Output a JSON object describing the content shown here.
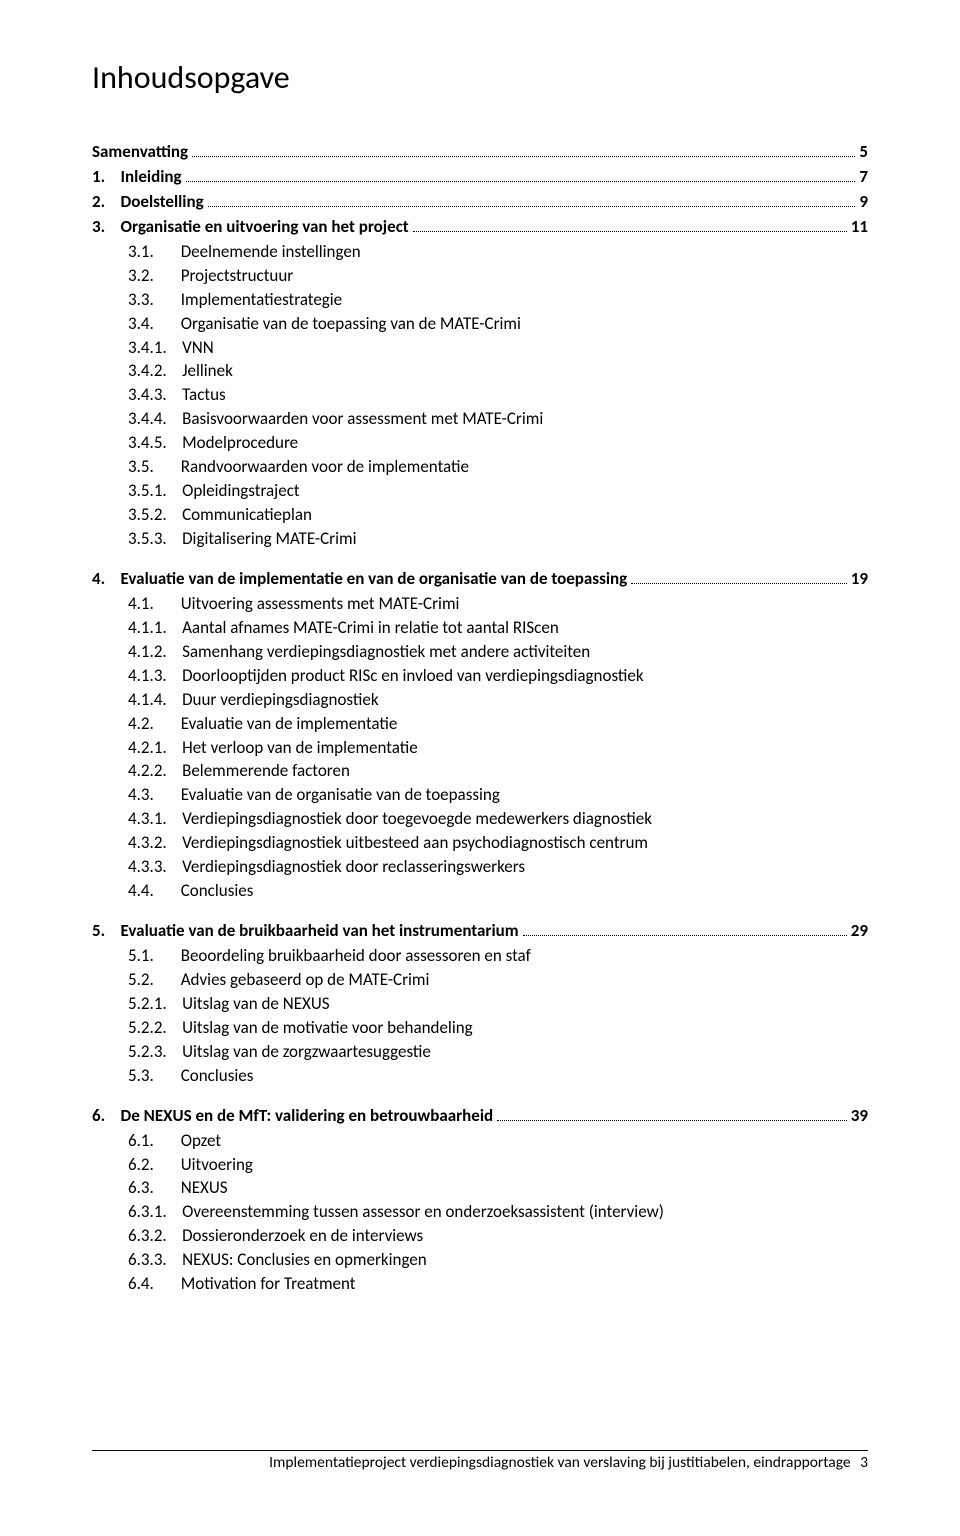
{
  "title": "Inhoudsopgave",
  "toc": [
    {
      "type": "spacer"
    },
    {
      "type": "main",
      "label": "Samenvatting",
      "page": "5",
      "indent": 0
    },
    {
      "type": "main",
      "label": "1.    Inleiding",
      "page": "7",
      "indent": 0
    },
    {
      "type": "main",
      "label": "2.    Doelstelling",
      "page": "9",
      "indent": 0
    },
    {
      "type": "main",
      "label": "3.    Organisatie en uitvoering van het project",
      "page": "11",
      "indent": 0
    },
    {
      "type": "sub",
      "text": "3.1.       Deelnemende instellingen"
    },
    {
      "type": "sub",
      "text": "3.2.       Projectstructuur"
    },
    {
      "type": "sub",
      "text": "3.3.       Implementatiestrategie"
    },
    {
      "type": "sub",
      "text": "3.4.       Organisatie van de toepassing van de MATE-Crimi"
    },
    {
      "type": "sub",
      "text": "3.4.1.    VNN"
    },
    {
      "type": "sub",
      "text": "3.4.2.    Jellinek"
    },
    {
      "type": "sub",
      "text": "3.4.3.    Tactus"
    },
    {
      "type": "sub",
      "text": "3.4.4.    Basisvoorwaarden voor assessment met MATE-Crimi"
    },
    {
      "type": "sub",
      "text": "3.4.5.    Modelprocedure"
    },
    {
      "type": "sub",
      "text": "3.5.       Randvoorwaarden voor de implementatie"
    },
    {
      "type": "sub",
      "text": "3.5.1.    Opleidingstraject"
    },
    {
      "type": "sub",
      "text": "3.5.2.    Communicatieplan"
    },
    {
      "type": "sub",
      "text": "3.5.3.    Digitalisering MATE-Crimi"
    },
    {
      "type": "gap"
    },
    {
      "type": "main",
      "label": "4.    Evaluatie van de implementatie en van de organisatie van de toepassing",
      "page": "19",
      "indent": 0
    },
    {
      "type": "sub",
      "text": "4.1.       Uitvoering assessments met MATE-Crimi"
    },
    {
      "type": "sub",
      "text": "4.1.1.    Aantal afnames MATE-Crimi in relatie tot aantal RIScen"
    },
    {
      "type": "sub",
      "text": "4.1.2.    Samenhang verdiepingsdiagnostiek met andere activiteiten"
    },
    {
      "type": "sub",
      "text": "4.1.3.    Doorlooptijden product RISc en invloed van verdiepingsdiagnostiek"
    },
    {
      "type": "sub",
      "text": "4.1.4.    Duur verdiepingsdiagnostiek"
    },
    {
      "type": "sub",
      "text": "4.2.       Evaluatie van de implementatie"
    },
    {
      "type": "sub",
      "text": "4.2.1.    Het verloop van de implementatie"
    },
    {
      "type": "sub",
      "text": "4.2.2.    Belemmerende factoren"
    },
    {
      "type": "sub",
      "text": "4.3.       Evaluatie van de organisatie van de toepassing"
    },
    {
      "type": "sub",
      "text": "4.3.1.    Verdiepingsdiagnostiek door toegevoegde medewerkers diagnostiek"
    },
    {
      "type": "sub",
      "text": "4.3.2.    Verdiepingsdiagnostiek uitbesteed aan psychodiagnostisch centrum"
    },
    {
      "type": "sub",
      "text": "4.3.3.    Verdiepingsdiagnostiek door reclasseringswerkers"
    },
    {
      "type": "sub",
      "text": "4.4.       Conclusies"
    },
    {
      "type": "gap"
    },
    {
      "type": "main",
      "label": "5.    Evaluatie van de bruikbaarheid van het instrumentarium",
      "page": "29",
      "indent": 0
    },
    {
      "type": "sub",
      "text": "5.1.       Beoordeling bruikbaarheid door assessoren en staf"
    },
    {
      "type": "sub",
      "text": "5.2.       Advies gebaseerd op de MATE-Crimi"
    },
    {
      "type": "sub",
      "text": "5.2.1.    Uitslag van de NEXUS"
    },
    {
      "type": "sub",
      "text": "5.2.2.    Uitslag van de motivatie voor behandeling"
    },
    {
      "type": "sub",
      "text": "5.2.3.    Uitslag van de zorgzwaartesuggestie"
    },
    {
      "type": "sub",
      "text": "5.3.       Conclusies"
    },
    {
      "type": "gap"
    },
    {
      "type": "main",
      "label": "6.    De NEXUS en de MfT: validering en betrouwbaarheid",
      "page": "39",
      "indent": 0
    },
    {
      "type": "sub",
      "text": "6.1.       Opzet"
    },
    {
      "type": "sub",
      "text": "6.2.       Uitvoering"
    },
    {
      "type": "sub",
      "text": "6.3.       NEXUS"
    },
    {
      "type": "sub",
      "text": "6.3.1.    Overeenstemming tussen assessor en onderzoeksassistent (interview)"
    },
    {
      "type": "sub",
      "text": "6.3.2.    Dossieronderzoek en de interviews"
    },
    {
      "type": "sub",
      "text": "6.3.3.    NEXUS: Conclusies en opmerkingen"
    },
    {
      "type": "sub",
      "text": "6.4.       Motivation for Treatment"
    }
  ],
  "footer": {
    "text": "Implementatieproject verdiepingsdiagnostiek van verslaving bij  justitiabelen, eindrapportage",
    "page": "3"
  }
}
